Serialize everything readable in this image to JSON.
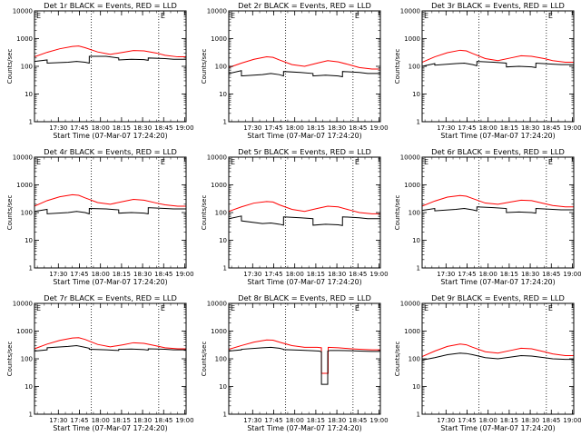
{
  "chart_data": [
    {
      "type": "line",
      "title": "Det 1r BLACK = Events, RED = LLD",
      "xlabel": "Start Time (07-Mar-07 17:24:20)",
      "ylabel": "Counts/sec",
      "yscale": "log",
      "ylim": [
        1,
        10000
      ],
      "xlim": [
        0,
        36
      ],
      "x_tick_labels": [
        "17:30",
        "17:45",
        "18:00",
        "18:15",
        "18:30",
        "18:45",
        "19:00"
      ],
      "x_ticks": [
        5.67,
        10.67,
        15.67,
        20.67,
        25.67,
        30.67,
        35.67
      ],
      "y_tick_labels": [
        "1",
        "10",
        "100",
        "1000",
        "10000"
      ],
      "vlines": [
        13.5,
        29.5
      ],
      "corner_marks": [
        "E",
        "E"
      ],
      "series": [
        {
          "color": "#ff0000",
          "x": [
            0,
            3,
            6,
            9,
            10.5,
            12,
            15,
            18,
            21,
            23.5,
            26,
            29,
            31,
            34,
            36
          ],
          "values": [
            220,
            320,
            430,
            520,
            540,
            470,
            330,
            270,
            320,
            370,
            360,
            300,
            250,
            220,
            220
          ]
        },
        {
          "color": "#000000",
          "x": [
            0,
            3,
            3.01,
            8,
            10,
            12,
            13,
            13.01,
            17,
            20,
            20.01,
            23,
            26,
            27,
            27.01,
            31,
            33,
            36
          ],
          "values": [
            150,
            170,
            130,
            140,
            150,
            140,
            130,
            230,
            230,
            200,
            170,
            180,
            175,
            165,
            200,
            190,
            180,
            180
          ]
        }
      ]
    },
    {
      "type": "line",
      "title": "Det 2r BLACK = Events, RED = LLD",
      "xlabel": "Start Time (07-Mar-07 17:24:20)",
      "ylabel": "Counts/sec",
      "yscale": "log",
      "ylim": [
        1,
        10000
      ],
      "xlim": [
        0,
        36
      ],
      "x_tick_labels": [
        "17:30",
        "17:45",
        "18:00",
        "18:15",
        "18:30",
        "18:45",
        "19:00"
      ],
      "x_ticks": [
        5.67,
        10.67,
        15.67,
        20.67,
        25.67,
        30.67,
        35.67
      ],
      "y_tick_labels": [
        "1",
        "10",
        "100",
        "1000",
        "10000"
      ],
      "vlines": [
        13.5,
        29.5
      ],
      "corner_marks": [
        "E",
        "E"
      ],
      "series": [
        {
          "color": "#ff0000",
          "x": [
            0,
            3,
            6,
            9,
            10.5,
            12,
            15,
            18,
            21,
            23.5,
            26,
            29,
            31,
            34,
            36
          ],
          "values": [
            90,
            130,
            180,
            220,
            210,
            170,
            115,
            100,
            130,
            160,
            145,
            110,
            90,
            80,
            80
          ]
        },
        {
          "color": "#000000",
          "x": [
            0,
            3,
            3.01,
            8,
            10,
            12,
            13,
            13.01,
            17,
            20,
            20.01,
            23,
            26,
            27,
            27.01,
            31,
            33,
            36
          ],
          "values": [
            55,
            70,
            45,
            50,
            55,
            50,
            45,
            65,
            60,
            55,
            45,
            48,
            45,
            42,
            65,
            60,
            55,
            55
          ]
        }
      ]
    },
    {
      "type": "line",
      "title": "Det 3r BLACK = Events, RED = LLD",
      "xlabel": "Start Time (07-Mar-07 17:24:20)",
      "ylabel": "Counts/sec",
      "yscale": "log",
      "ylim": [
        1,
        10000
      ],
      "xlim": [
        0,
        36
      ],
      "x_tick_labels": [
        "17:30",
        "17:45",
        "18:00",
        "18:15",
        "18:30",
        "18:45",
        "19:00"
      ],
      "x_ticks": [
        5.67,
        10.67,
        15.67,
        20.67,
        25.67,
        30.67,
        35.67
      ],
      "y_tick_labels": [
        "1",
        "10",
        "100",
        "1000",
        "10000"
      ],
      "vlines": [
        13.5,
        29.5
      ],
      "corner_marks": [
        "E",
        "E"
      ],
      "series": [
        {
          "color": "#ff0000",
          "x": [
            0,
            3,
            6,
            9,
            10.5,
            12,
            15,
            18,
            21,
            23.5,
            26,
            29,
            31,
            34,
            36
          ],
          "values": [
            140,
            220,
            310,
            380,
            360,
            290,
            190,
            160,
            200,
            240,
            230,
            190,
            160,
            140,
            140
          ]
        },
        {
          "color": "#000000",
          "x": [
            0,
            3,
            3.01,
            8,
            10,
            12,
            13,
            13.01,
            17,
            20,
            20.01,
            23,
            26,
            27,
            27.01,
            31,
            33,
            36
          ],
          "values": [
            100,
            125,
            110,
            125,
            130,
            115,
            105,
            150,
            140,
            130,
            95,
            100,
            95,
            90,
            130,
            120,
            115,
            115
          ]
        }
      ]
    },
    {
      "type": "line",
      "title": "Det 4r BLACK = Events, RED = LLD",
      "xlabel": "Start Time (07-Mar-07 17:24:20)",
      "ylabel": "Counts/sec",
      "yscale": "log",
      "ylim": [
        1,
        10000
      ],
      "xlim": [
        0,
        36
      ],
      "x_tick_labels": [
        "17:30",
        "17:45",
        "18:00",
        "18:15",
        "18:30",
        "18:45",
        "19:00"
      ],
      "x_ticks": [
        5.67,
        10.67,
        15.67,
        20.67,
        25.67,
        30.67,
        35.67
      ],
      "y_tick_labels": [
        "1",
        "10",
        "100",
        "1000",
        "10000"
      ],
      "vlines": [
        13.5,
        29.5
      ],
      "corner_marks": [
        "E",
        "E"
      ],
      "series": [
        {
          "color": "#ff0000",
          "x": [
            0,
            3,
            6,
            9,
            10.5,
            12,
            15,
            18,
            21,
            23.5,
            26,
            29,
            31,
            34,
            36
          ],
          "values": [
            170,
            270,
            370,
            440,
            420,
            340,
            230,
            200,
            250,
            300,
            280,
            220,
            190,
            170,
            170
          ]
        },
        {
          "color": "#000000",
          "x": [
            0,
            3,
            3.01,
            8,
            10,
            12,
            13,
            13.01,
            17,
            20,
            20.01,
            23,
            26,
            27,
            27.01,
            31,
            33,
            36
          ],
          "values": [
            110,
            130,
            90,
            100,
            110,
            100,
            90,
            140,
            135,
            125,
            95,
            100,
            95,
            90,
            150,
            140,
            135,
            135
          ]
        }
      ]
    },
    {
      "type": "line",
      "title": "Det 5r BLACK = Events, RED = LLD",
      "xlabel": "Start Time (07-Mar-07 17:24:20)",
      "ylabel": "Counts/sec",
      "yscale": "log",
      "ylim": [
        1,
        10000
      ],
      "xlim": [
        0,
        36
      ],
      "x_tick_labels": [
        "17:30",
        "17:45",
        "18:00",
        "18:15",
        "18:30",
        "18:45",
        "19:00"
      ],
      "x_ticks": [
        5.67,
        10.67,
        15.67,
        20.67,
        25.67,
        30.67,
        35.67
      ],
      "y_tick_labels": [
        "1",
        "10",
        "100",
        "1000",
        "10000"
      ],
      "vlines": [
        13.5,
        29.5
      ],
      "corner_marks": [
        "E",
        "E"
      ],
      "series": [
        {
          "color": "#ff0000",
          "x": [
            0,
            3,
            6,
            9,
            10.5,
            12,
            15,
            18,
            21,
            23.5,
            26,
            29,
            31,
            34,
            36
          ],
          "values": [
            110,
            160,
            220,
            250,
            240,
            190,
            130,
            110,
            140,
            170,
            160,
            120,
            100,
            90,
            90
          ]
        },
        {
          "color": "#000000",
          "x": [
            0,
            3,
            3.01,
            8,
            10,
            12,
            13,
            13.01,
            17,
            20,
            20.01,
            23,
            26,
            27,
            27.01,
            31,
            33,
            36
          ],
          "values": [
            60,
            75,
            50,
            40,
            42,
            38,
            35,
            70,
            65,
            60,
            35,
            38,
            36,
            34,
            70,
            65,
            60,
            60
          ]
        }
      ]
    },
    {
      "type": "line",
      "title": "Det 6r BLACK = Events, RED = LLD",
      "xlabel": "Start Time (07-Mar-07 17:24:20)",
      "ylabel": "Counts/sec",
      "yscale": "log",
      "ylim": [
        1,
        10000
      ],
      "xlim": [
        0,
        36
      ],
      "x_tick_labels": [
        "17:30",
        "17:45",
        "18:00",
        "18:15",
        "18:30",
        "18:45",
        "19:00"
      ],
      "x_ticks": [
        5.67,
        10.67,
        15.67,
        20.67,
        25.67,
        30.67,
        35.67
      ],
      "y_tick_labels": [
        "1",
        "10",
        "100",
        "1000",
        "10000"
      ],
      "vlines": [
        13.5,
        29.5
      ],
      "corner_marks": [
        "E",
        "E"
      ],
      "series": [
        {
          "color": "#ff0000",
          "x": [
            0,
            3,
            6,
            9,
            10.5,
            12,
            15,
            18,
            21,
            23.5,
            26,
            29,
            31,
            34,
            36
          ],
          "values": [
            170,
            260,
            360,
            410,
            390,
            320,
            220,
            200,
            240,
            280,
            270,
            210,
            180,
            160,
            160
          ]
        },
        {
          "color": "#000000",
          "x": [
            0,
            3,
            3.01,
            8,
            10,
            12,
            13,
            13.01,
            17,
            20,
            20.01,
            23,
            26,
            27,
            27.01,
            31,
            33,
            36
          ],
          "values": [
            120,
            140,
            115,
            130,
            140,
            125,
            115,
            160,
            150,
            140,
            100,
            105,
            100,
            95,
            140,
            130,
            125,
            125
          ]
        }
      ]
    },
    {
      "type": "line",
      "title": "Det 7r BLACK = Events, RED = LLD",
      "xlabel": "Start Time (07-Mar-07 17:24:20)",
      "ylabel": "Counts/sec",
      "yscale": "log",
      "ylim": [
        1,
        10000
      ],
      "xlim": [
        0,
        36
      ],
      "x_tick_labels": [
        "17:30",
        "17:45",
        "18:00",
        "18:15",
        "18:30",
        "18:45",
        "19:00"
      ],
      "x_ticks": [
        5.67,
        10.67,
        15.67,
        20.67,
        25.67,
        30.67,
        35.67
      ],
      "y_tick_labels": [
        "1",
        "10",
        "100",
        "1000",
        "10000"
      ],
      "vlines": [
        13.5,
        29.5
      ],
      "corner_marks": [
        "E",
        "E"
      ],
      "series": [
        {
          "color": "#ff0000",
          "x": [
            0,
            3,
            6,
            9,
            10.5,
            12,
            15,
            18,
            21,
            23.5,
            26,
            29,
            31,
            34,
            36
          ],
          "values": [
            230,
            340,
            460,
            560,
            580,
            500,
            330,
            270,
            320,
            380,
            360,
            290,
            250,
            230,
            230
          ]
        },
        {
          "color": "#000000",
          "x": [
            0,
            3,
            3.01,
            8,
            10,
            12,
            13,
            13.01,
            17,
            20,
            20.01,
            23,
            26,
            27,
            27.01,
            31,
            33,
            36
          ],
          "values": [
            190,
            210,
            250,
            280,
            300,
            260,
            240,
            220,
            210,
            200,
            220,
            225,
            215,
            205,
            230,
            220,
            210,
            210
          ]
        }
      ]
    },
    {
      "type": "line",
      "title": "Det 8r BLACK = Events, RED = LLD",
      "xlabel": "Start Time (07-Mar-07 17:24:20)",
      "ylabel": "Counts/sec",
      "yscale": "log",
      "ylim": [
        1,
        10000
      ],
      "xlim": [
        0,
        36
      ],
      "x_tick_labels": [
        "17:30",
        "17:45",
        "18:00",
        "18:15",
        "18:30",
        "18:45",
        "19:00"
      ],
      "x_ticks": [
        5.67,
        10.67,
        15.67,
        20.67,
        25.67,
        30.67,
        35.67
      ],
      "y_tick_labels": [
        "1",
        "10",
        "100",
        "1000",
        "10000"
      ],
      "vlines": [
        13.5,
        29.5
      ],
      "corner_marks": [
        "E",
        "E"
      ],
      "series": [
        {
          "color": "#ff0000",
          "x": [
            0,
            3,
            6,
            9,
            10.5,
            12,
            15,
            18,
            21,
            22,
            22.01,
            23.6,
            23.61,
            26,
            29,
            31,
            34,
            36
          ],
          "values": [
            220,
            300,
            400,
            480,
            470,
            400,
            300,
            260,
            260,
            250,
            30,
            30,
            260,
            250,
            230,
            220,
            210,
            210
          ]
        },
        {
          "color": "#000000",
          "x": [
            0,
            3,
            3.01,
            8,
            10,
            12,
            13,
            13.01,
            17,
            20,
            21.5,
            22,
            22.01,
            23.5,
            23.51,
            24,
            26,
            29,
            31,
            34,
            36
          ],
          "values": [
            190,
            210,
            220,
            250,
            260,
            240,
            220,
            215,
            205,
            195,
            190,
            180,
            12,
            12,
            190,
            200,
            200,
            195,
            190,
            185,
            185
          ]
        }
      ]
    },
    {
      "type": "line",
      "title": "Det 9r BLACK = Events, RED = LLD",
      "xlabel": "Start Time (07-Mar-07 17:24:20)",
      "ylabel": "Counts/sec",
      "yscale": "log",
      "ylim": [
        1,
        10000
      ],
      "xlim": [
        0,
        36
      ],
      "x_tick_labels": [
        "17:30",
        "17:45",
        "18:00",
        "18:15",
        "18:30",
        "18:45",
        "19:00"
      ],
      "x_ticks": [
        5.67,
        10.67,
        15.67,
        20.67,
        25.67,
        30.67,
        35.67
      ],
      "y_tick_labels": [
        "1",
        "10",
        "100",
        "1000",
        "10000"
      ],
      "vlines": [
        13.5,
        29.5
      ],
      "corner_marks": [
        "E",
        "E"
      ],
      "series": [
        {
          "color": "#ff0000",
          "x": [
            0,
            3,
            6,
            9,
            10.5,
            12,
            15,
            18,
            21,
            23.5,
            26,
            29,
            31,
            34,
            36
          ],
          "values": [
            120,
            190,
            280,
            340,
            320,
            260,
            180,
            160,
            200,
            240,
            230,
            180,
            150,
            130,
            130
          ]
        },
        {
          "color": "#000000",
          "x": [
            0,
            3,
            6,
            9,
            10.5,
            12,
            15,
            18,
            21,
            23.5,
            26,
            29,
            31,
            34,
            36
          ],
          "values": [
            90,
            110,
            140,
            160,
            155,
            140,
            110,
            100,
            115,
            130,
            125,
            110,
            100,
            95,
            95
          ]
        }
      ]
    }
  ]
}
